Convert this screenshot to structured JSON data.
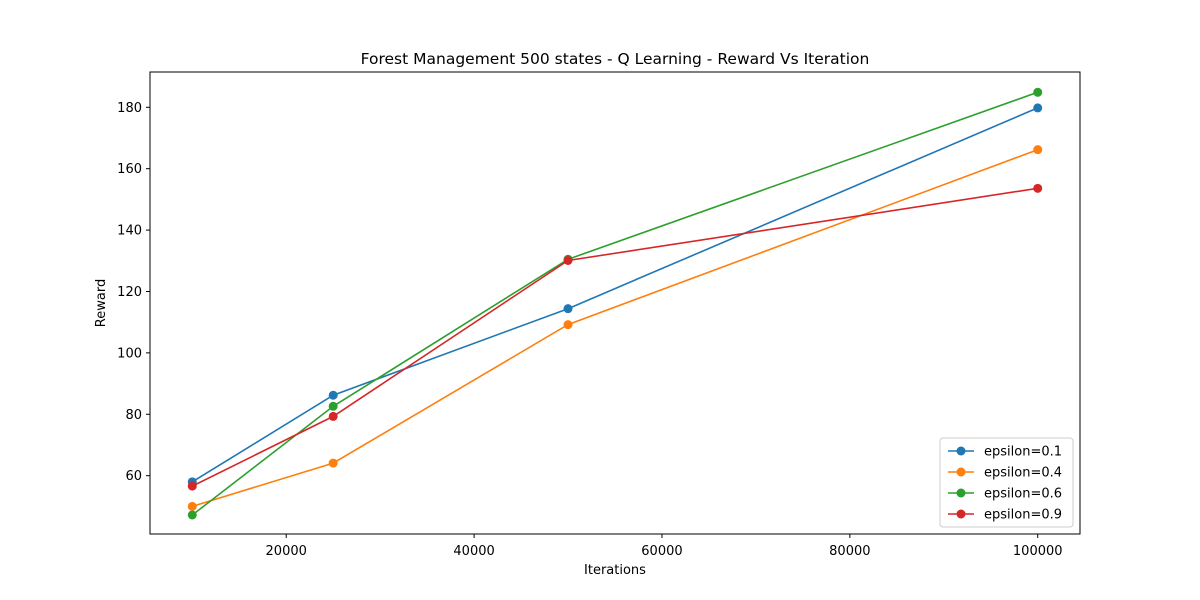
{
  "chart_data": {
    "type": "line",
    "title": "Forest Management 500 states - Q Learning - Reward Vs Iteration",
    "xlabel": "Iterations",
    "ylabel": "Reward",
    "x": [
      10000,
      25000,
      50000,
      100000
    ],
    "xlim": [
      5500,
      104500
    ],
    "ylim": [
      41,
      191.5
    ],
    "xticks": [
      20000,
      40000,
      60000,
      80000,
      100000
    ],
    "yticks": [
      60,
      80,
      100,
      120,
      140,
      160,
      180
    ],
    "grid": false,
    "legend_position": "lower-right",
    "marker": "circle",
    "series": [
      {
        "name": "epsilon=0.1",
        "color": "#1f77b4",
        "values": [
          58.0,
          86.2,
          114.4,
          179.8
        ]
      },
      {
        "name": "epsilon=0.4",
        "color": "#ff7f0e",
        "values": [
          50.0,
          64.1,
          109.2,
          166.2
        ]
      },
      {
        "name": "epsilon=0.6",
        "color": "#2ca02c",
        "values": [
          47.2,
          82.6,
          130.5,
          184.9
        ]
      },
      {
        "name": "epsilon=0.9",
        "color": "#d62728",
        "values": [
          56.6,
          79.3,
          130.1,
          153.6
        ]
      }
    ]
  }
}
